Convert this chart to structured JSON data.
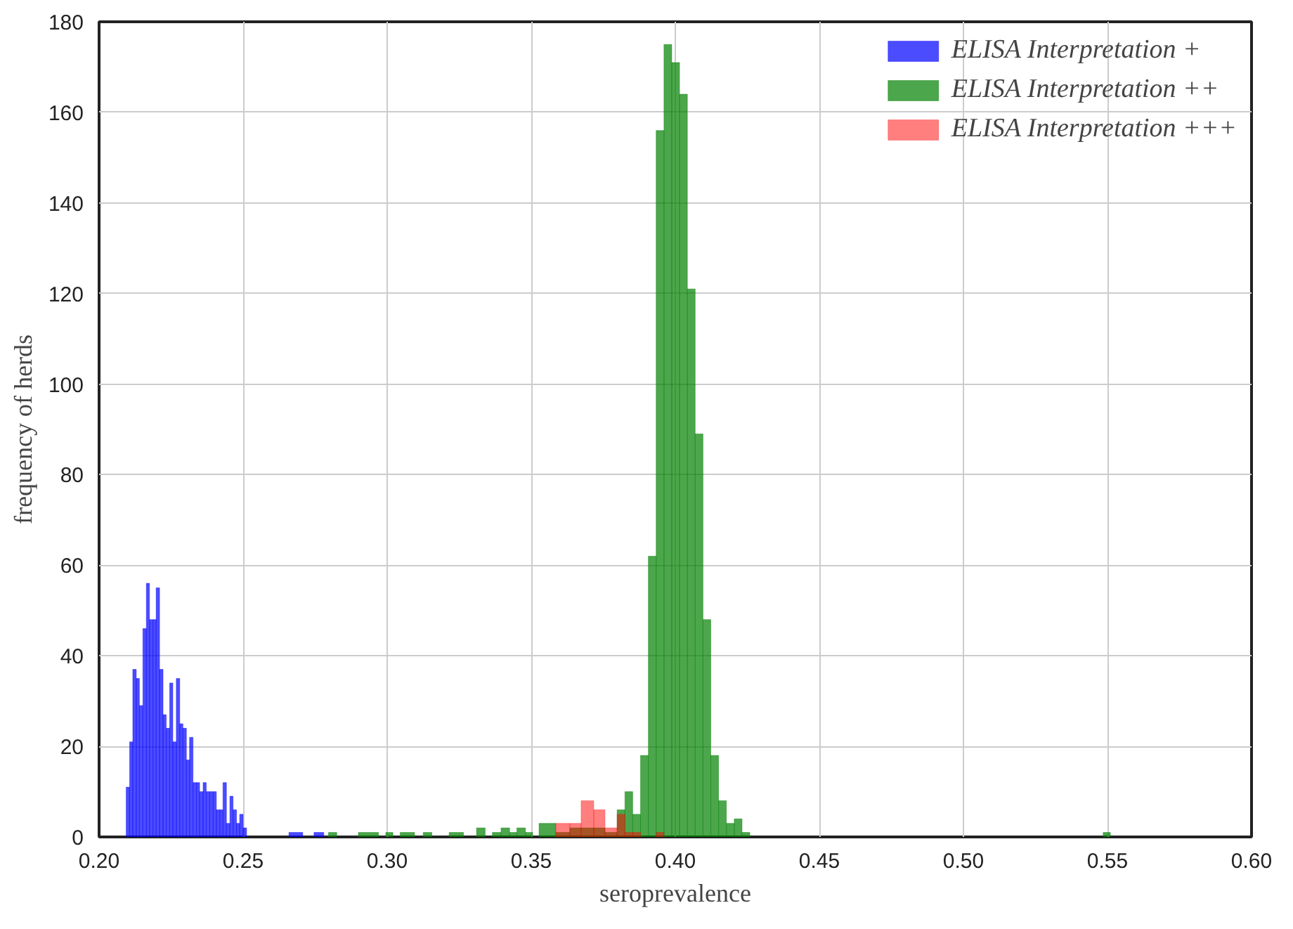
{
  "chart_data": {
    "type": "histogram",
    "xlabel": "seroprevalence",
    "ylabel": "frequency of herds",
    "xlim": [
      0.2,
      0.6
    ],
    "ylim": [
      0,
      180
    ],
    "xticks": [
      {
        "value": 0.2,
        "label": "0.20"
      },
      {
        "value": 0.25,
        "label": "0.25"
      },
      {
        "value": 0.3,
        "label": "0.30"
      },
      {
        "value": 0.35,
        "label": "0.35"
      },
      {
        "value": 0.4,
        "label": "0.40"
      },
      {
        "value": 0.45,
        "label": "0.45"
      },
      {
        "value": 0.5,
        "label": "0.50"
      },
      {
        "value": 0.55,
        "label": "0.55"
      },
      {
        "value": 0.6,
        "label": "0.60"
      }
    ],
    "yticks": [
      0,
      20,
      40,
      60,
      80,
      100,
      120,
      140,
      160,
      180
    ],
    "grid": true,
    "legend": "top right",
    "bins": [
      0.2094,
      0.2106,
      0.2117,
      0.2129,
      0.214,
      0.2152,
      0.2164,
      0.2175,
      0.2187,
      0.2198,
      0.221,
      0.2222,
      0.2233,
      0.2245,
      0.2256,
      0.2268,
      0.228,
      0.2291,
      0.2303,
      0.2314,
      0.2326,
      0.2338,
      0.2349,
      0.2361,
      0.2372,
      0.2384,
      0.2396,
      0.2407,
      0.2419,
      0.243,
      0.2442,
      0.2454,
      0.2465,
      0.2477,
      0.2488,
      0.25,
      0.2512,
      0.2659,
      0.2707,
      0.2746,
      0.278,
      0.2796,
      0.2825,
      0.29,
      0.297,
      0.2995,
      0.302,
      0.3045,
      0.3095,
      0.3125,
      0.3155,
      0.3215,
      0.3265,
      0.331,
      0.334,
      0.3365,
      0.3395,
      0.3425,
      0.345,
      0.348,
      0.3505,
      0.3527,
      0.3585,
      0.3634,
      0.3673,
      0.3717,
      0.3756,
      0.3798,
      0.38251,
      0.38522,
      0.38793,
      0.39064,
      0.39335,
      0.39606,
      0.39877,
      0.40148,
      0.40419,
      0.4069,
      0.40961,
      0.41232,
      0.41503,
      0.41774,
      0.42045,
      0.42316,
      0.42587,
      0.5485,
      0.551
    ],
    "series": [
      {
        "name": "ELISA Interpretation +",
        "color": "#0000ff",
        "values": [
          11,
          21,
          37,
          35,
          29,
          46,
          56,
          48,
          48,
          55,
          37,
          27,
          24,
          34,
          21,
          35,
          25,
          24,
          17,
          22,
          12,
          12,
          10,
          12,
          10,
          10,
          10,
          6,
          6,
          12,
          3,
          9,
          6,
          3,
          5,
          2,
          0,
          1,
          0,
          1,
          0,
          0,
          0,
          0,
          0,
          0,
          0,
          0,
          0,
          0,
          0,
          0,
          0,
          0,
          0,
          0,
          0,
          0,
          0,
          0,
          0,
          0,
          0,
          0,
          0,
          0,
          0,
          0,
          0,
          0,
          0,
          0,
          0,
          0,
          0,
          0,
          0,
          0,
          0,
          0,
          0,
          0,
          0,
          0,
          0,
          0
        ]
      },
      {
        "name": "ELISA Interpretation ++",
        "color": "#008000",
        "values": [
          0,
          0,
          0,
          0,
          0,
          0,
          0,
          0,
          0,
          0,
          0,
          0,
          0,
          0,
          0,
          0,
          0,
          0,
          0,
          0,
          0,
          0,
          0,
          0,
          0,
          0,
          0,
          0,
          0,
          0,
          0,
          0,
          0,
          0,
          0,
          0,
          0,
          0,
          0,
          0,
          0,
          1,
          0,
          1,
          0,
          1,
          0,
          1,
          0,
          1,
          0,
          1,
          0,
          2,
          0,
          1,
          2,
          1,
          2,
          1,
          0,
          3,
          1,
          2,
          2,
          2,
          1,
          6,
          10,
          5,
          18,
          62,
          156,
          175,
          171,
          164,
          121,
          89,
          48,
          18,
          8,
          3,
          4,
          1,
          0,
          1
        ]
      },
      {
        "name": "ELISA Interpretation +++",
        "color": "#ff0000",
        "values": [
          0,
          0,
          0,
          0,
          0,
          0,
          0,
          0,
          0,
          0,
          0,
          0,
          0,
          0,
          0,
          0,
          0,
          0,
          0,
          0,
          0,
          0,
          0,
          0,
          0,
          0,
          0,
          0,
          0,
          0,
          0,
          0,
          0,
          0,
          0,
          0,
          0,
          0,
          0,
          0,
          0,
          0,
          0,
          0,
          0,
          0,
          0,
          0,
          0,
          0,
          0,
          0,
          0,
          0,
          0,
          0,
          0,
          0,
          0,
          0,
          0,
          0,
          3,
          3,
          8,
          6,
          2,
          5,
          1,
          1,
          0,
          0,
          1,
          0,
          0,
          0,
          0,
          0,
          0,
          0,
          0,
          0,
          0,
          0,
          0,
          0
        ]
      }
    ]
  }
}
